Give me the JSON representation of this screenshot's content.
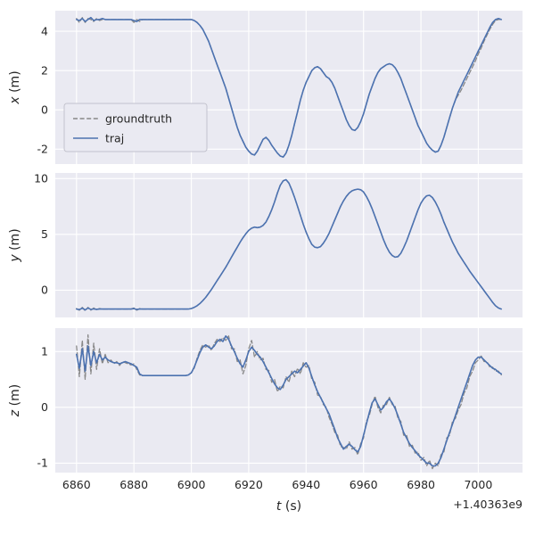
{
  "chart_data": {
    "type": "line",
    "title": "",
    "xlabel": "t (s)",
    "xlabel_var": "t",
    "xlabel_unit": " (s)",
    "x_offset_text": "+1.40363e9",
    "grid": true,
    "legend": {
      "position": "center-left of top subplot",
      "entries": [
        "groundtruth",
        "traj"
      ]
    },
    "colors": {
      "axes_bg": "#eaeaf2",
      "grid": "#ffffff",
      "text": "#262626",
      "traj": "#4c72b0",
      "groundtruth": "#888888",
      "legend_border": "#c3c3cd"
    },
    "series_style": [
      {
        "name": "groundtruth",
        "color": "#888888",
        "dash": true
      },
      {
        "name": "traj",
        "color": "#4c72b0",
        "dash": false
      }
    ],
    "t_start": 6860,
    "t_step": 1,
    "xlim": [
      6852.6,
      7015.4
    ],
    "xticks": [
      6860,
      6880,
      6900,
      6920,
      6940,
      6960,
      6980,
      7000
    ],
    "subplots": [
      {
        "ylabel": "x (m)",
        "ylabel_var": "x",
        "ylabel_unit": " (m)",
        "ylim": [
          -2.76,
          5.05
        ],
        "yticks": [
          -2,
          0,
          2,
          4
        ],
        "groundtruth": [
          4.65,
          4.45,
          4.7,
          4.45,
          4.65,
          4.6,
          4.5,
          4.65,
          4.55,
          4.6,
          4.6,
          4.6,
          4.6,
          4.6,
          4.6,
          4.6,
          4.6,
          4.6,
          4.6,
          4.6,
          4.45,
          4.6,
          4.5,
          4.6,
          4.6,
          4.6,
          4.6,
          4.6,
          4.6,
          4.6,
          4.6,
          4.6,
          4.6,
          4.6,
          4.6,
          4.6,
          4.6,
          4.6,
          4.6,
          4.6,
          4.6,
          4.55,
          4.45,
          4.3,
          4.1,
          3.8,
          3.5,
          3.1,
          2.7,
          2.3,
          1.9,
          1.5,
          1.1,
          0.6,
          0.1,
          -0.4,
          -0.9,
          -1.3,
          -1.6,
          -1.9,
          -2.1,
          -2.25,
          -2.3,
          -2.1,
          -1.8,
          -1.5,
          -1.4,
          -1.55,
          -1.8,
          -2.0,
          -2.2,
          -2.35,
          -2.4,
          -2.2,
          -1.8,
          -1.3,
          -0.7,
          -0.1,
          0.5,
          1.0,
          1.4,
          1.7,
          2.0,
          2.15,
          2.2,
          2.1,
          1.9,
          1.7,
          1.6,
          1.4,
          1.1,
          0.7,
          0.3,
          -0.1,
          -0.5,
          -0.8,
          -1.0,
          -1.05,
          -0.9,
          -0.6,
          -0.2,
          0.3,
          0.8,
          1.2,
          1.6,
          1.9,
          2.1,
          2.2,
          2.3,
          2.35,
          2.3,
          2.15,
          1.9,
          1.6,
          1.2,
          0.8,
          0.4,
          0.0,
          -0.4,
          -0.8,
          -1.1,
          -1.4,
          -1.7,
          -1.9,
          -2.05,
          -2.15,
          -2.1,
          -1.8,
          -1.4,
          -0.9,
          -0.4,
          0.1,
          0.5,
          0.75,
          1.0,
          1.3,
          1.6,
          1.9,
          2.2,
          2.5,
          2.85,
          3.15,
          3.5,
          3.8,
          4.1,
          4.35,
          4.55,
          4.6,
          4.6
        ],
        "traj": [
          4.6,
          4.55,
          4.65,
          4.5,
          4.6,
          4.7,
          4.55,
          4.6,
          4.6,
          4.65,
          4.6,
          4.6,
          4.6,
          4.6,
          4.6,
          4.6,
          4.6,
          4.6,
          4.6,
          4.6,
          4.55,
          4.5,
          4.6,
          4.6,
          4.6,
          4.6,
          4.6,
          4.6,
          4.6,
          4.6,
          4.6,
          4.6,
          4.6,
          4.6,
          4.6,
          4.6,
          4.6,
          4.6,
          4.6,
          4.6,
          4.6,
          4.55,
          4.45,
          4.3,
          4.1,
          3.8,
          3.5,
          3.1,
          2.7,
          2.3,
          1.9,
          1.5,
          1.1,
          0.6,
          0.1,
          -0.4,
          -0.9,
          -1.3,
          -1.6,
          -1.9,
          -2.1,
          -2.25,
          -2.3,
          -2.1,
          -1.8,
          -1.5,
          -1.4,
          -1.55,
          -1.8,
          -2.0,
          -2.2,
          -2.35,
          -2.4,
          -2.2,
          -1.8,
          -1.3,
          -0.7,
          -0.1,
          0.5,
          1.0,
          1.4,
          1.7,
          2.0,
          2.15,
          2.2,
          2.1,
          1.9,
          1.7,
          1.6,
          1.4,
          1.1,
          0.7,
          0.3,
          -0.1,
          -0.5,
          -0.8,
          -1.0,
          -1.05,
          -0.9,
          -0.6,
          -0.2,
          0.3,
          0.8,
          1.2,
          1.6,
          1.9,
          2.1,
          2.2,
          2.3,
          2.35,
          2.3,
          2.15,
          1.9,
          1.6,
          1.2,
          0.8,
          0.4,
          0.0,
          -0.4,
          -0.8,
          -1.1,
          -1.4,
          -1.7,
          -1.9,
          -2.05,
          -2.15,
          -2.1,
          -1.8,
          -1.4,
          -0.9,
          -0.4,
          0.1,
          0.5,
          0.9,
          1.2,
          1.5,
          1.8,
          2.1,
          2.4,
          2.7,
          3.0,
          3.3,
          3.6,
          3.9,
          4.2,
          4.45,
          4.6,
          4.65,
          4.6
        ]
      },
      {
        "ylabel": "y (m)",
        "ylabel_var": "y",
        "ylabel_unit": " (m)",
        "ylim": [
          -2.45,
          10.5
        ],
        "yticks": [
          0,
          5,
          10
        ],
        "groundtruth": [
          -1.65,
          -1.8,
          -1.55,
          -1.85,
          -1.55,
          -1.8,
          -1.6,
          -1.75,
          -1.65,
          -1.7,
          -1.7,
          -1.7,
          -1.7,
          -1.7,
          -1.7,
          -1.7,
          -1.7,
          -1.7,
          -1.7,
          -1.7,
          -1.6,
          -1.8,
          -1.65,
          -1.7,
          -1.7,
          -1.7,
          -1.7,
          -1.7,
          -1.7,
          -1.7,
          -1.7,
          -1.7,
          -1.7,
          -1.7,
          -1.7,
          -1.7,
          -1.7,
          -1.7,
          -1.7,
          -1.7,
          -1.65,
          -1.55,
          -1.4,
          -1.2,
          -0.95,
          -0.65,
          -0.3,
          0.05,
          0.45,
          0.85,
          1.25,
          1.65,
          2.05,
          2.5,
          2.95,
          3.4,
          3.85,
          4.3,
          4.7,
          5.05,
          5.35,
          5.55,
          5.65,
          5.6,
          5.65,
          5.8,
          6.1,
          6.6,
          7.2,
          7.9,
          8.7,
          9.4,
          9.8,
          9.9,
          9.6,
          9.0,
          8.3,
          7.5,
          6.7,
          5.9,
          5.2,
          4.6,
          4.1,
          3.85,
          3.8,
          3.9,
          4.2,
          4.6,
          5.1,
          5.7,
          6.3,
          6.9,
          7.5,
          8.0,
          8.4,
          8.7,
          8.9,
          9.0,
          9.05,
          9.0,
          8.8,
          8.4,
          7.9,
          7.3,
          6.6,
          5.9,
          5.2,
          4.5,
          3.9,
          3.4,
          3.1,
          2.95,
          3.0,
          3.3,
          3.8,
          4.4,
          5.1,
          5.8,
          6.5,
          7.2,
          7.8,
          8.2,
          8.45,
          8.5,
          8.3,
          7.9,
          7.4,
          6.8,
          6.1,
          5.5,
          4.9,
          4.3,
          3.8,
          3.3,
          2.9,
          2.5,
          2.1,
          1.7,
          1.35,
          1.0,
          0.65,
          0.3,
          -0.05,
          -0.4,
          -0.75,
          -1.1,
          -1.4,
          -1.6,
          -1.7
        ],
        "traj": [
          -1.7,
          -1.75,
          -1.62,
          -1.78,
          -1.6,
          -1.74,
          -1.68,
          -1.72,
          -1.7,
          -1.7,
          -1.7,
          -1.7,
          -1.7,
          -1.7,
          -1.7,
          -1.7,
          -1.7,
          -1.7,
          -1.7,
          -1.7,
          -1.66,
          -1.74,
          -1.7,
          -1.7,
          -1.7,
          -1.7,
          -1.7,
          -1.7,
          -1.7,
          -1.7,
          -1.7,
          -1.7,
          -1.7,
          -1.7,
          -1.7,
          -1.7,
          -1.7,
          -1.7,
          -1.7,
          -1.7,
          -1.65,
          -1.55,
          -1.4,
          -1.2,
          -0.95,
          -0.65,
          -0.3,
          0.05,
          0.45,
          0.85,
          1.25,
          1.65,
          2.05,
          2.5,
          2.95,
          3.4,
          3.85,
          4.3,
          4.7,
          5.05,
          5.35,
          5.55,
          5.65,
          5.6,
          5.65,
          5.8,
          6.1,
          6.6,
          7.2,
          7.9,
          8.7,
          9.4,
          9.8,
          9.9,
          9.6,
          9.0,
          8.3,
          7.5,
          6.7,
          5.9,
          5.2,
          4.6,
          4.1,
          3.85,
          3.8,
          3.9,
          4.2,
          4.6,
          5.1,
          5.7,
          6.3,
          6.9,
          7.5,
          8.0,
          8.4,
          8.7,
          8.9,
          9.0,
          9.05,
          9.0,
          8.8,
          8.4,
          7.9,
          7.3,
          6.6,
          5.9,
          5.2,
          4.5,
          3.9,
          3.4,
          3.1,
          2.95,
          3.0,
          3.3,
          3.8,
          4.4,
          5.1,
          5.8,
          6.5,
          7.2,
          7.8,
          8.2,
          8.45,
          8.5,
          8.3,
          7.9,
          7.4,
          6.8,
          6.1,
          5.5,
          4.9,
          4.3,
          3.8,
          3.3,
          2.9,
          2.5,
          2.1,
          1.7,
          1.35,
          1.0,
          0.65,
          0.3,
          -0.05,
          -0.4,
          -0.75,
          -1.1,
          -1.4,
          -1.6,
          -1.7
        ]
      },
      {
        "ylabel": "z (m)",
        "ylabel_var": "z",
        "ylabel_unit": " (m)",
        "ylim": [
          -1.17,
          1.42
        ],
        "yticks": [
          -1,
          0,
          1
        ],
        "groundtruth": [
          1.1,
          0.55,
          1.2,
          0.5,
          1.3,
          0.6,
          1.15,
          0.68,
          1.05,
          0.78,
          0.95,
          0.8,
          0.85,
          0.78,
          0.82,
          0.75,
          0.82,
          0.8,
          0.78,
          0.76,
          0.78,
          0.68,
          0.58,
          0.57,
          0.57,
          0.57,
          0.57,
          0.57,
          0.57,
          0.57,
          0.57,
          0.57,
          0.57,
          0.57,
          0.57,
          0.57,
          0.57,
          0.57,
          0.57,
          0.58,
          0.62,
          0.7,
          0.88,
          1.02,
          1.12,
          1.08,
          1.12,
          1.02,
          1.14,
          1.22,
          1.18,
          1.25,
          1.2,
          1.28,
          1.05,
          1.05,
          0.82,
          0.85,
          0.6,
          0.75,
          1.05,
          1.2,
          0.9,
          1.0,
          0.85,
          0.88,
          0.68,
          0.66,
          0.45,
          0.5,
          0.28,
          0.38,
          0.35,
          0.55,
          0.45,
          0.65,
          0.55,
          0.7,
          0.6,
          0.8,
          0.72,
          0.75,
          0.5,
          0.45,
          0.22,
          0.2,
          0.05,
          0.0,
          -0.18,
          -0.3,
          -0.45,
          -0.5,
          -0.7,
          -0.72,
          -0.75,
          -0.62,
          -0.75,
          -0.72,
          -0.85,
          -0.65,
          -0.55,
          -0.25,
          -0.15,
          0.05,
          0.2,
          0.0,
          -0.1,
          0.05,
          0.05,
          0.18,
          0.05,
          0.02,
          -0.2,
          -0.25,
          -0.5,
          -0.5,
          -0.7,
          -0.68,
          -0.82,
          -0.8,
          -0.95,
          -0.9,
          -1.05,
          -0.95,
          -1.1,
          -1.0,
          -1.05,
          -0.85,
          -0.8,
          -0.55,
          -0.5,
          -0.25,
          -0.2,
          -0.05,
          0.05,
          0.25,
          0.35,
          0.55,
          0.65,
          0.8,
          0.85,
          0.92,
          0.82,
          0.82,
          0.72,
          0.72,
          0.65,
          0.65,
          0.58
        ],
        "traj": [
          0.95,
          0.7,
          1.05,
          0.65,
          1.1,
          0.75,
          1.0,
          0.8,
          0.95,
          0.85,
          0.9,
          0.85,
          0.82,
          0.8,
          0.8,
          0.78,
          0.8,
          0.82,
          0.8,
          0.78,
          0.75,
          0.72,
          0.6,
          0.57,
          0.57,
          0.57,
          0.57,
          0.57,
          0.57,
          0.57,
          0.57,
          0.57,
          0.57,
          0.57,
          0.57,
          0.57,
          0.57,
          0.57,
          0.57,
          0.58,
          0.62,
          0.72,
          0.85,
          0.98,
          1.08,
          1.12,
          1.08,
          1.05,
          1.1,
          1.18,
          1.22,
          1.18,
          1.28,
          1.22,
          1.1,
          1.0,
          0.88,
          0.78,
          0.72,
          0.85,
          1.0,
          1.08,
          1.02,
          0.95,
          0.9,
          0.82,
          0.72,
          0.62,
          0.52,
          0.42,
          0.35,
          0.32,
          0.4,
          0.5,
          0.55,
          0.6,
          0.65,
          0.62,
          0.68,
          0.74,
          0.8,
          0.7,
          0.55,
          0.4,
          0.28,
          0.18,
          0.08,
          -0.02,
          -0.12,
          -0.26,
          -0.4,
          -0.55,
          -0.65,
          -0.75,
          -0.7,
          -0.66,
          -0.7,
          -0.76,
          -0.8,
          -0.7,
          -0.5,
          -0.3,
          -0.1,
          0.08,
          0.15,
          0.05,
          -0.05,
          0.0,
          0.1,
          0.15,
          0.08,
          -0.02,
          -0.15,
          -0.3,
          -0.45,
          -0.55,
          -0.65,
          -0.72,
          -0.78,
          -0.85,
          -0.9,
          -0.95,
          -1.0,
          -1.0,
          -1.05,
          -1.05,
          -1.0,
          -0.9,
          -0.75,
          -0.6,
          -0.45,
          -0.3,
          -0.15,
          0.0,
          0.15,
          0.3,
          0.45,
          0.6,
          0.75,
          0.85,
          0.9,
          0.9,
          0.85,
          0.8,
          0.75,
          0.7,
          0.68,
          0.63,
          0.6
        ]
      }
    ]
  }
}
